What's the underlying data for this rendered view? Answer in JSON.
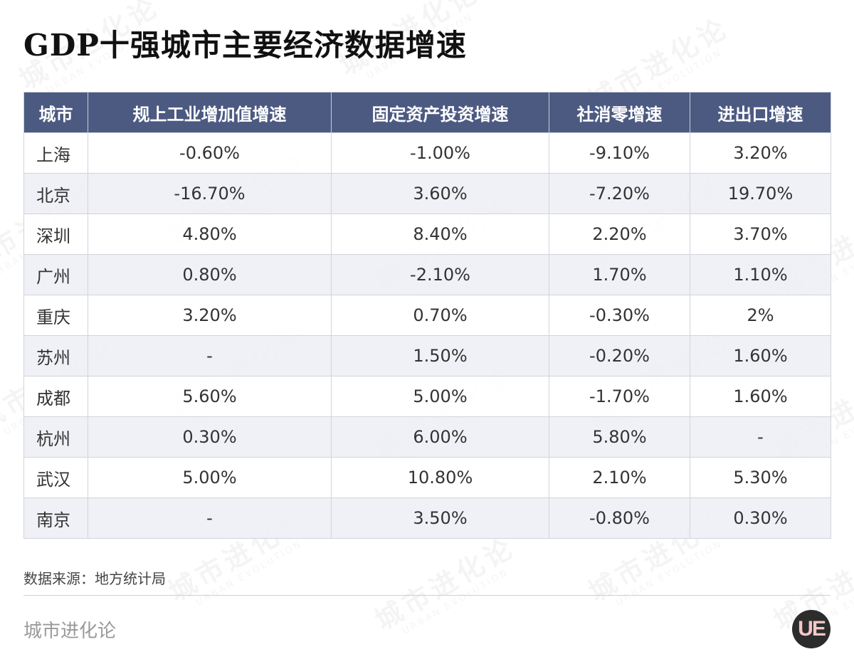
{
  "title": "GDP十强城市主要经济数据增速",
  "watermark": {
    "cn": "城市进化论",
    "en": "URBAN EVOLUTION"
  },
  "colors": {
    "header_bg": "#4c5a82",
    "header_text": "#ffffff",
    "row_alt": "#eceef4"
  },
  "table": {
    "headers": [
      "城市",
      "规上工业增加值增速",
      "固定资产投资增速",
      "社消零增速",
      "进出口增速"
    ],
    "rows": [
      [
        "上海",
        "-0.60%",
        "-1.00%",
        "-9.10%",
        "3.20%"
      ],
      [
        "北京",
        "-16.70%",
        "3.60%",
        "-7.20%",
        "19.70%"
      ],
      [
        "深圳",
        "4.80%",
        "8.40%",
        "2.20%",
        "3.70%"
      ],
      [
        "广州",
        "0.80%",
        "-2.10%",
        "1.70%",
        "1.10%"
      ],
      [
        "重庆",
        "3.20%",
        "0.70%",
        "-0.30%",
        "2%"
      ],
      [
        "苏州",
        "-",
        "1.50%",
        "-0.20%",
        "1.60%"
      ],
      [
        "成都",
        "5.60%",
        "5.00%",
        "-1.70%",
        "1.60%"
      ],
      [
        "杭州",
        "0.30%",
        "6.00%",
        "5.80%",
        "-"
      ],
      [
        "武汉",
        "5.00%",
        "10.80%",
        "2.10%",
        "5.30%"
      ],
      [
        "南京",
        "-",
        "3.50%",
        "-0.80%",
        "0.30%"
      ]
    ]
  },
  "chart_data": {
    "type": "table",
    "title": "GDP十强城市主要经济数据增速",
    "columns": [
      "城市",
      "规上工业增加值增速",
      "固定资产投资增速",
      "社消零增速",
      "进出口增速"
    ],
    "rows": [
      {
        "城市": "上海",
        "规上工业增加值增速": -0.6,
        "固定资产投资增速": -1.0,
        "社消零增速": -9.1,
        "进出口增速": 3.2
      },
      {
        "城市": "北京",
        "规上工业增加值增速": -16.7,
        "固定资产投资增速": 3.6,
        "社消零增速": -7.2,
        "进出口增速": 19.7
      },
      {
        "城市": "深圳",
        "规上工业增加值增速": 4.8,
        "固定资产投资增速": 8.4,
        "社消零增速": 2.2,
        "进出口增速": 3.7
      },
      {
        "城市": "广州",
        "规上工业增加值增速": 0.8,
        "固定资产投资增速": -2.1,
        "社消零增速": 1.7,
        "进出口增速": 1.1
      },
      {
        "城市": "重庆",
        "规上工业增加值增速": 3.2,
        "固定资产投资增速": 0.7,
        "社消零增速": -0.3,
        "进出口增速": 2.0
      },
      {
        "城市": "苏州",
        "规上工业增加值增速": null,
        "固定资产投资增速": 1.5,
        "社消零增速": -0.2,
        "进出口增速": 1.6
      },
      {
        "城市": "成都",
        "规上工业增加值增速": 5.6,
        "固定资产投资增速": 5.0,
        "社消零增速": -1.7,
        "进出口增速": 1.6
      },
      {
        "城市": "杭州",
        "规上工业增加值增速": 0.3,
        "固定资产投资增速": 6.0,
        "社消零增速": 5.8,
        "进出口增速": null
      },
      {
        "城市": "武汉",
        "规上工业增加值增速": 5.0,
        "固定资产投资增速": 10.8,
        "社消零增速": 2.1,
        "进出口增速": 5.3
      },
      {
        "城市": "南京",
        "规上工业增加值增速": null,
        "固定资产投资增速": 3.5,
        "社消零增速": -0.8,
        "进出口增速": 0.3
      }
    ]
  },
  "source": "数据来源：地方统计局",
  "brand": "城市进化论",
  "logo_text": "UE"
}
